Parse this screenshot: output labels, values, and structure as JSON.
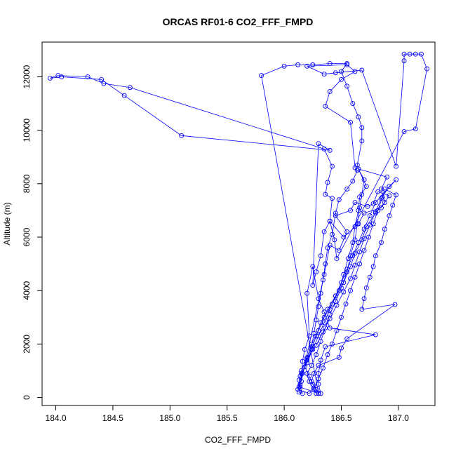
{
  "chart_data": {
    "type": "scatter",
    "title": "ORCAS RF01-6 CO2_FFF_FMPD",
    "xlabel": "CO2_FFF_FMPD",
    "ylabel": "Altitude (m)",
    "x_ticks": [
      184.0,
      184.5,
      185.0,
      185.5,
      186.0,
      186.5,
      187.0
    ],
    "x_tick_labels": [
      "184.0",
      "184.5",
      "185.0",
      "185.5",
      "186.0",
      "186.5",
      "187.0"
    ],
    "y_ticks": [
      0,
      2000,
      4000,
      6000,
      8000,
      10000,
      12000
    ],
    "y_tick_labels": [
      "0",
      "2000",
      "4000",
      "6000",
      "8000",
      "10000",
      "12000"
    ],
    "xlim": [
      183.88,
      187.32
    ],
    "ylim": [
      -300,
      13300
    ],
    "series_color": "#0000ff",
    "marker": "open-circle",
    "connected": true,
    "points": [
      [
        186.28,
        150
      ],
      [
        186.26,
        300
      ],
      [
        186.22,
        600
      ],
      [
        186.2,
        900
      ],
      [
        186.24,
        1200
      ],
      [
        186.28,
        1600
      ],
      [
        186.32,
        2100
      ],
      [
        186.36,
        2600
      ],
      [
        186.4,
        3100
      ],
      [
        186.45,
        3600
      ],
      [
        186.5,
        4100
      ],
      [
        186.55,
        4700
      ],
      [
        186.58,
        5300
      ],
      [
        186.62,
        5900
      ],
      [
        186.64,
        6500
      ],
      [
        186.66,
        7100
      ],
      [
        186.68,
        7600
      ],
      [
        186.7,
        8150
      ],
      [
        186.65,
        8550
      ],
      [
        186.64,
        8700
      ],
      [
        186.68,
        9600
      ],
      [
        186.68,
        10100
      ],
      [
        186.65,
        10500
      ],
      [
        186.6,
        11000
      ],
      [
        186.55,
        11650
      ],
      [
        186.5,
        12200
      ],
      [
        186.55,
        12500
      ],
      [
        186.4,
        12500
      ],
      [
        186.25,
        12450
      ],
      [
        186.12,
        12450
      ],
      [
        186.0,
        12400
      ],
      [
        185.8,
        12050
      ],
      [
        186.3,
        150
      ],
      [
        186.25,
        500
      ],
      [
        186.22,
        800
      ],
      [
        186.18,
        1150
      ],
      [
        186.2,
        1500
      ],
      [
        186.24,
        2000
      ],
      [
        186.3,
        2500
      ],
      [
        186.35,
        3000
      ],
      [
        186.42,
        3500
      ],
      [
        186.48,
        4000
      ],
      [
        186.52,
        4600
      ],
      [
        186.56,
        5200
      ],
      [
        186.6,
        5800
      ],
      [
        186.62,
        6400
      ],
      [
        186.65,
        7000
      ],
      [
        186.66,
        7500
      ],
      [
        186.72,
        7900
      ],
      [
        186.65,
        8550
      ],
      [
        186.9,
        8250
      ],
      [
        186.85,
        7800
      ],
      [
        186.88,
        7300
      ],
      [
        186.8,
        6900
      ],
      [
        186.72,
        6400
      ],
      [
        186.68,
        5900
      ],
      [
        186.62,
        5400
      ],
      [
        186.58,
        4900
      ],
      [
        186.52,
        4300
      ],
      [
        186.45,
        3800
      ],
      [
        186.38,
        3300
      ],
      [
        186.32,
        2800
      ],
      [
        186.28,
        2300
      ],
      [
        186.24,
        1800
      ],
      [
        186.2,
        1300
      ],
      [
        186.15,
        900
      ],
      [
        186.14,
        500
      ],
      [
        186.13,
        200
      ],
      [
        186.16,
        150
      ],
      [
        186.14,
        400
      ],
      [
        186.13,
        650
      ],
      [
        186.15,
        1000
      ],
      [
        186.2,
        1450
      ],
      [
        186.28,
        1950
      ],
      [
        186.34,
        2450
      ],
      [
        186.4,
        2950
      ],
      [
        186.46,
        3450
      ],
      [
        186.52,
        3950
      ],
      [
        186.58,
        4450
      ],
      [
        186.62,
        4950
      ],
      [
        186.66,
        5450
      ],
      [
        186.7,
        5950
      ],
      [
        186.75,
        6450
      ],
      [
        186.8,
        6950
      ],
      [
        186.85,
        7450
      ],
      [
        186.92,
        7900
      ],
      [
        186.98,
        8150
      ],
      [
        186.8,
        7300
      ],
      [
        186.75,
        6800
      ],
      [
        186.7,
        6300
      ],
      [
        186.65,
        5800
      ],
      [
        186.6,
        5300
      ],
      [
        186.55,
        4800
      ],
      [
        186.5,
        4300
      ],
      [
        186.45,
        3800
      ],
      [
        186.4,
        3300
      ],
      [
        186.35,
        2800
      ],
      [
        186.3,
        2300
      ],
      [
        186.25,
        1800
      ],
      [
        186.2,
        1300
      ],
      [
        186.14,
        800
      ],
      [
        186.12,
        300
      ],
      [
        186.22,
        150
      ],
      [
        186.26,
        350
      ],
      [
        186.3,
        700
      ],
      [
        186.34,
        1100
      ],
      [
        186.38,
        1600
      ],
      [
        186.42,
        2000
      ],
      [
        186.46,
        2500
      ],
      [
        186.5,
        3000
      ],
      [
        186.54,
        3500
      ],
      [
        186.58,
        4000
      ],
      [
        186.62,
        4500
      ],
      [
        186.66,
        5000
      ],
      [
        186.7,
        5500
      ],
      [
        186.74,
        6000
      ],
      [
        186.78,
        6500
      ],
      [
        186.82,
        7000
      ],
      [
        186.86,
        7500
      ],
      [
        186.88,
        7800
      ],
      [
        186.98,
        7580
      ],
      [
        186.95,
        7200
      ],
      [
        186.92,
        6800
      ],
      [
        186.88,
        6300
      ],
      [
        186.85,
        5800
      ],
      [
        186.8,
        5300
      ],
      [
        186.78,
        4900
      ],
      [
        186.75,
        4500
      ],
      [
        186.72,
        4100
      ],
      [
        186.7,
        3700
      ],
      [
        186.68,
        3300
      ],
      [
        186.97,
        3480
      ],
      [
        186.55,
        2200
      ],
      [
        186.5,
        1850
      ],
      [
        186.48,
        1500
      ],
      [
        186.3,
        1200
      ],
      [
        186.26,
        900
      ],
      [
        186.24,
        600
      ],
      [
        186.28,
        300
      ],
      [
        186.32,
        150
      ],
      [
        186.3,
        500
      ],
      [
        186.3,
        900
      ],
      [
        186.32,
        1400
      ],
      [
        186.36,
        1900
      ],
      [
        186.8,
        2350
      ],
      [
        186.4,
        2600
      ],
      [
        186.35,
        3200
      ],
      [
        186.3,
        3700
      ],
      [
        186.25,
        4900
      ],
      [
        186.2,
        3900
      ],
      [
        186.22,
        2300
      ],
      [
        186.18,
        1800
      ],
      [
        186.16,
        1350
      ],
      [
        186.15,
        600
      ],
      [
        186.35,
        4600
      ],
      [
        186.4,
        5700
      ],
      [
        186.48,
        5500
      ],
      [
        186.55,
        6200
      ],
      [
        186.45,
        6800
      ],
      [
        186.58,
        7000
      ],
      [
        186.62,
        7300
      ],
      [
        186.73,
        7150
      ],
      [
        186.78,
        7250
      ],
      [
        186.82,
        7700
      ],
      [
        186.92,
        7550
      ],
      [
        186.85,
        7100
      ],
      [
        186.7,
        6900
      ],
      [
        186.65,
        6500
      ],
      [
        186.52,
        6000
      ],
      [
        186.4,
        6600
      ],
      [
        186.35,
        6200
      ],
      [
        186.32,
        5300
      ],
      [
        186.28,
        4700
      ],
      [
        186.25,
        4200
      ],
      [
        186.3,
        9500
      ],
      [
        186.4,
        9250
      ],
      [
        185.1,
        9800
      ],
      [
        184.6,
        11300
      ],
      [
        184.4,
        11900
      ],
      [
        184.05,
        12000
      ],
      [
        183.95,
        11950
      ],
      [
        184.02,
        12050
      ],
      [
        184.28,
        12000
      ],
      [
        184.42,
        11750
      ],
      [
        184.65,
        11600
      ],
      [
        186.35,
        9300
      ],
      [
        186.42,
        8650
      ],
      [
        186.38,
        8050
      ],
      [
        186.36,
        7600
      ],
      [
        186.42,
        7450
      ],
      [
        186.4,
        6600
      ],
      [
        186.44,
        5900
      ],
      [
        186.46,
        5200
      ],
      [
        187.05,
        9950
      ],
      [
        187.15,
        10050
      ],
      [
        187.25,
        12300
      ],
      [
        187.2,
        12850
      ],
      [
        187.15,
        12850
      ],
      [
        187.1,
        12850
      ],
      [
        187.05,
        12850
      ],
      [
        187.05,
        12600
      ],
      [
        186.98,
        8650
      ],
      [
        186.68,
        12250
      ],
      [
        186.45,
        12150
      ],
      [
        186.35,
        12100
      ],
      [
        186.2,
        12400
      ],
      [
        186.55,
        12450
      ],
      [
        186.62,
        12200
      ],
      [
        186.5,
        11900
      ],
      [
        186.4,
        11450
      ],
      [
        186.36,
        10900
      ],
      [
        186.58,
        10300
      ],
      [
        186.62,
        8600
      ],
      [
        186.64,
        8500
      ],
      [
        186.6,
        8100
      ],
      [
        186.55,
        7800
      ],
      [
        186.48,
        7400
      ],
      [
        186.45,
        6900
      ],
      [
        186.42,
        6100
      ],
      [
        186.38,
        5600
      ],
      [
        186.36,
        5000
      ],
      [
        186.34,
        4400
      ],
      [
        186.32,
        3900
      ],
      [
        186.3,
        3400
      ],
      [
        186.28,
        2900
      ],
      [
        186.26,
        2400
      ],
      [
        186.24,
        1900
      ],
      [
        186.2,
        1400
      ],
      [
        186.16,
        900
      ],
      [
        186.13,
        400
      ],
      [
        186.3,
        150
      ]
    ]
  }
}
